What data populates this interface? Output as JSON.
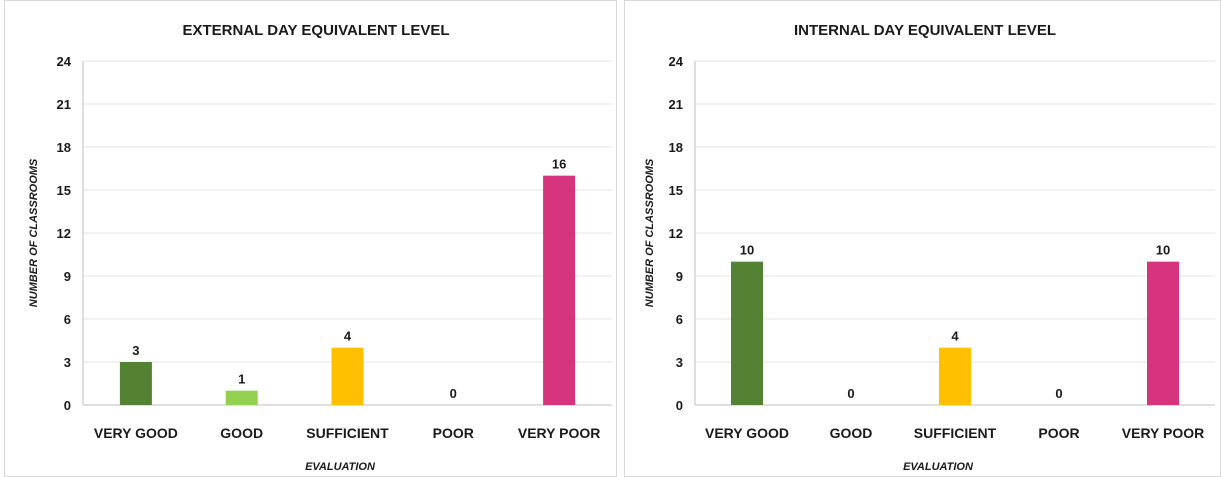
{
  "chart_data": [
    {
      "type": "bar",
      "title": "EXTERNAL DAY  EQUIVALENT LEVEL",
      "xlabel": "EVALUATION",
      "ylabel": "NUMBER OF CLASSROOMS",
      "categories": [
        "VERY GOOD",
        "GOOD",
        "SUFFICIENT",
        "POOR",
        "VERY POOR"
      ],
      "values": [
        3,
        1,
        4,
        0,
        16
      ],
      "colors": [
        "#548235",
        "#92d050",
        "#ffc000",
        "#c00000",
        "#d6347c"
      ],
      "ylim": [
        0,
        24
      ],
      "yticks": [
        0,
        3,
        6,
        9,
        12,
        15,
        18,
        21,
        24
      ],
      "grid": true,
      "legend": "none"
    },
    {
      "type": "bar",
      "title": "INTERNAL DAY  EQUIVALENT LEVEL",
      "xlabel": "EVALUATION",
      "ylabel": "NUMBER OF CLASSROOMS",
      "categories": [
        "VERY GOOD",
        "GOOD",
        "SUFFICIENT",
        "POOR",
        "VERY POOR"
      ],
      "values": [
        10,
        0,
        4,
        0,
        10
      ],
      "colors": [
        "#548235",
        "#92d050",
        "#ffc000",
        "#c00000",
        "#d6347c"
      ],
      "ylim": [
        0,
        24
      ],
      "yticks": [
        0,
        3,
        6,
        9,
        12,
        15,
        18,
        21,
        24
      ],
      "grid": true,
      "legend": "none"
    }
  ]
}
